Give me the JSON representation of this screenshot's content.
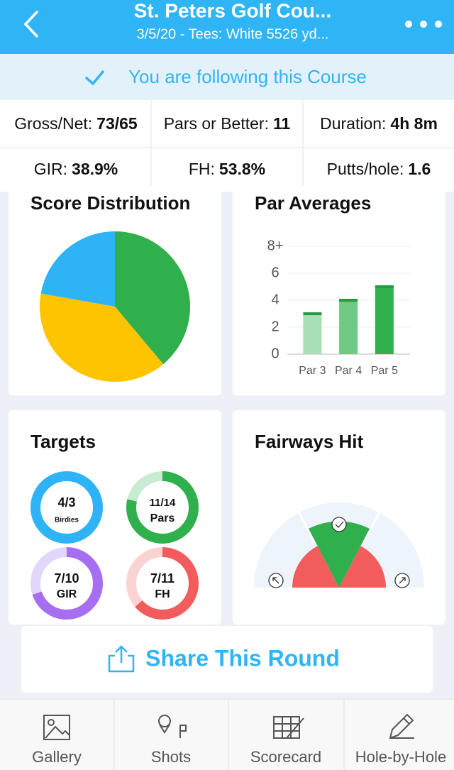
{
  "header": {
    "title": "St. Peters Golf Cou...",
    "subtitle": "3/5/20 - Tees: White 5526 yd..."
  },
  "follow_banner": "You are following this Course",
  "stats": [
    [
      {
        "label": "Gross/Net:",
        "value": "73/65"
      },
      {
        "label": "Pars or Better:",
        "value": "11"
      },
      {
        "label": "Duration:",
        "value": "4h 8m"
      }
    ],
    [
      {
        "label": "GIR:",
        "value": "38.9%"
      },
      {
        "label": "FH:",
        "value": "53.8%"
      },
      {
        "label": "Putts/hole:",
        "value": "1.6"
      }
    ]
  ],
  "chart_data": [
    {
      "type": "pie",
      "title": "Score Distribution",
      "values": [
        7,
        7,
        4
      ],
      "colors": [
        "#2fb04c",
        "#ffc400",
        "#2eb3f7"
      ]
    },
    {
      "type": "bar",
      "title": "Par Averages",
      "categories": [
        "Par 3",
        "Par 4",
        "Par 5"
      ],
      "values": [
        3.1,
        4.1,
        5.1
      ],
      "colors": [
        "#a8dfb5",
        "#6cca83",
        "#2fb04c"
      ],
      "cap_color": "#259a40",
      "ylim": [
        0,
        8
      ],
      "yticks": [
        0,
        2,
        4,
        6,
        {
          "value": 8,
          "label": "8+"
        }
      ],
      "grid": true
    }
  ],
  "targets": {
    "title": "Targets",
    "items": [
      {
        "value": "4/3",
        "label": "Birdies"
      },
      {
        "value": "11/14",
        "label": "Pars"
      },
      {
        "value": "7/10",
        "label": "GIR"
      },
      {
        "value": "7/11",
        "label": "FH"
      }
    ]
  },
  "fairways": {
    "title": "Fairways Hit"
  },
  "share_button": "Share This Round",
  "tabs": [
    "Gallery",
    "Shots",
    "Scorecard",
    "Hole-by-Hole"
  ]
}
